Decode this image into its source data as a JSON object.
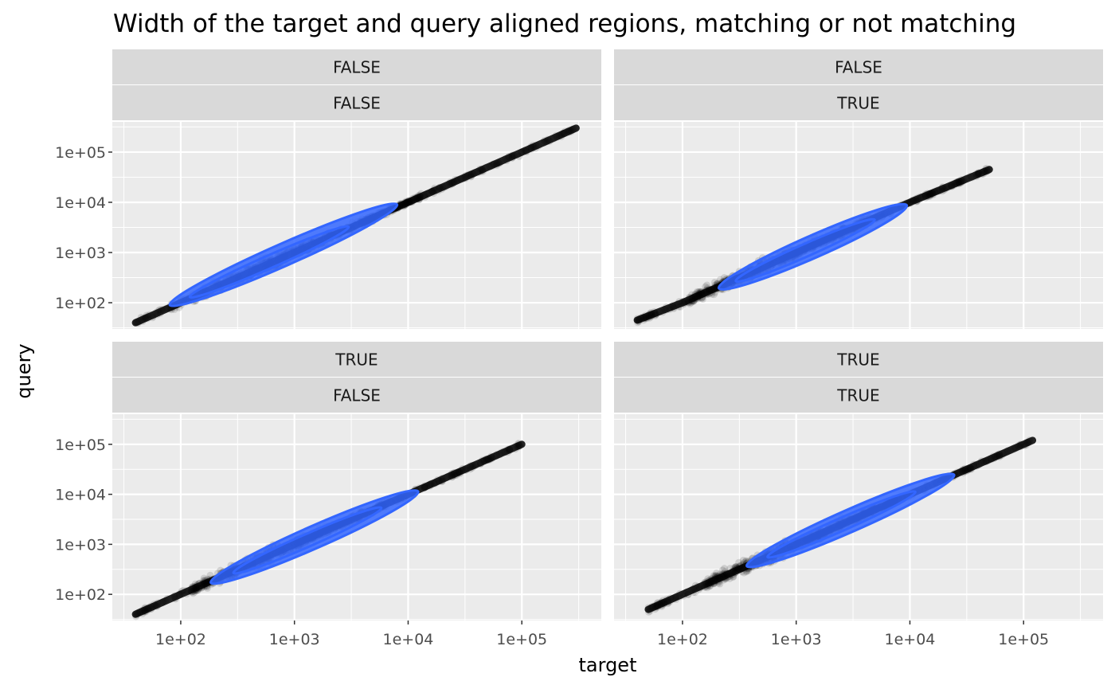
{
  "chart_data": {
    "type": "scatter",
    "title": "Width of the target and query aligned regions, matching or not matching",
    "xlabel": "target",
    "ylabel": "query",
    "x_scale": "log10",
    "y_scale": "log10",
    "grid": true,
    "overlay": "2d density contours",
    "colors": {
      "points": "#000000",
      "contour": "#3366ff",
      "panel_bg": "#ebebeb",
      "strip_bg": "#d9d9d9",
      "grid": "#ffffff",
      "tick_text": "#4d4d4d",
      "strip_text": "#1a1a1a"
    },
    "panels": [
      {
        "strip": [
          "FALSE",
          "FALSE"
        ],
        "xlim": [
          25,
          500000
        ],
        "ylim": [
          30,
          400000
        ],
        "x_ticks": [
          "1e+02",
          "1e+03",
          "1e+04",
          "1e+05"
        ],
        "y_ticks": [
          "1e+02",
          "1e+03",
          "1e+04",
          "1e+05"
        ],
        "range": {
          "x": [
            40,
            300000
          ],
          "y": [
            40,
            300000
          ]
        },
        "trend_points": [
          [
            40,
            40
          ],
          [
            100,
            100
          ],
          [
            1000,
            1000
          ],
          [
            10000,
            10000
          ],
          [
            100000,
            100000
          ],
          [
            300000,
            300000
          ]
        ],
        "contours": [
          {
            "center": [
              800,
              900
            ],
            "x_extent": [
              80,
              8000
            ]
          },
          {
            "center": [
              600,
              650
            ],
            "x_extent": [
              120,
              3000
            ]
          }
        ]
      },
      {
        "strip": [
          "FALSE",
          "TRUE"
        ],
        "xlim": [
          25,
          500000
        ],
        "ylim": [
          30,
          400000
        ],
        "x_ticks": [
          "1e+02",
          "1e+03",
          "1e+04",
          "1e+05"
        ],
        "y_ticks": [
          "1e+02",
          "1e+03",
          "1e+04",
          "1e+05"
        ],
        "range": {
          "x": [
            40,
            50000
          ],
          "y": [
            45,
            45000
          ]
        },
        "trend_points": [
          [
            40,
            45
          ],
          [
            100,
            100
          ],
          [
            1000,
            1000
          ],
          [
            10000,
            10000
          ],
          [
            50000,
            45000
          ]
        ],
        "contours": [
          {
            "center": [
              1400,
              1300
            ],
            "x_extent": [
              200,
              9000
            ]
          },
          {
            "center": [
              1200,
              1100
            ],
            "x_extent": [
              300,
              5000
            ]
          }
        ]
      },
      {
        "strip": [
          "TRUE",
          "FALSE"
        ],
        "xlim": [
          25,
          500000
        ],
        "ylim": [
          30,
          400000
        ],
        "x_ticks": [
          "1e+02",
          "1e+03",
          "1e+04",
          "1e+05"
        ],
        "y_ticks": [
          "1e+02",
          "1e+03",
          "1e+04",
          "1e+05"
        ],
        "range": {
          "x": [
            40,
            100000
          ],
          "y": [
            40,
            100000
          ]
        },
        "trend_points": [
          [
            40,
            40
          ],
          [
            100,
            100
          ],
          [
            1000,
            1000
          ],
          [
            10000,
            10000
          ],
          [
            100000,
            100000
          ]
        ],
        "contours": [
          {
            "center": [
              1500,
              1400
            ],
            "x_extent": [
              150,
              10000
            ]
          },
          {
            "center": [
              1300,
              1200
            ],
            "x_extent": [
              250,
              5000
            ]
          }
        ]
      },
      {
        "strip": [
          "TRUE",
          "TRUE"
        ],
        "xlim": [
          25,
          500000
        ],
        "ylim": [
          30,
          400000
        ],
        "x_ticks": [
          "1e+02",
          "1e+03",
          "1e+04",
          "1e+05"
        ],
        "y_ticks": [
          "1e+02",
          "1e+03",
          "1e+04",
          "1e+05"
        ],
        "range": {
          "x": [
            50,
            120000
          ],
          "y": [
            50,
            120000
          ]
        },
        "trend_points": [
          [
            50,
            50
          ],
          [
            100,
            100
          ],
          [
            1000,
            1000
          ],
          [
            10000,
            10000
          ],
          [
            120000,
            120000
          ]
        ],
        "contours": [
          {
            "center": [
              3000,
              3000
            ],
            "x_extent": [
              300,
              20000
            ]
          },
          {
            "center": [
              2500,
              2500
            ],
            "x_extent": [
              500,
              10000
            ]
          }
        ]
      }
    ]
  }
}
